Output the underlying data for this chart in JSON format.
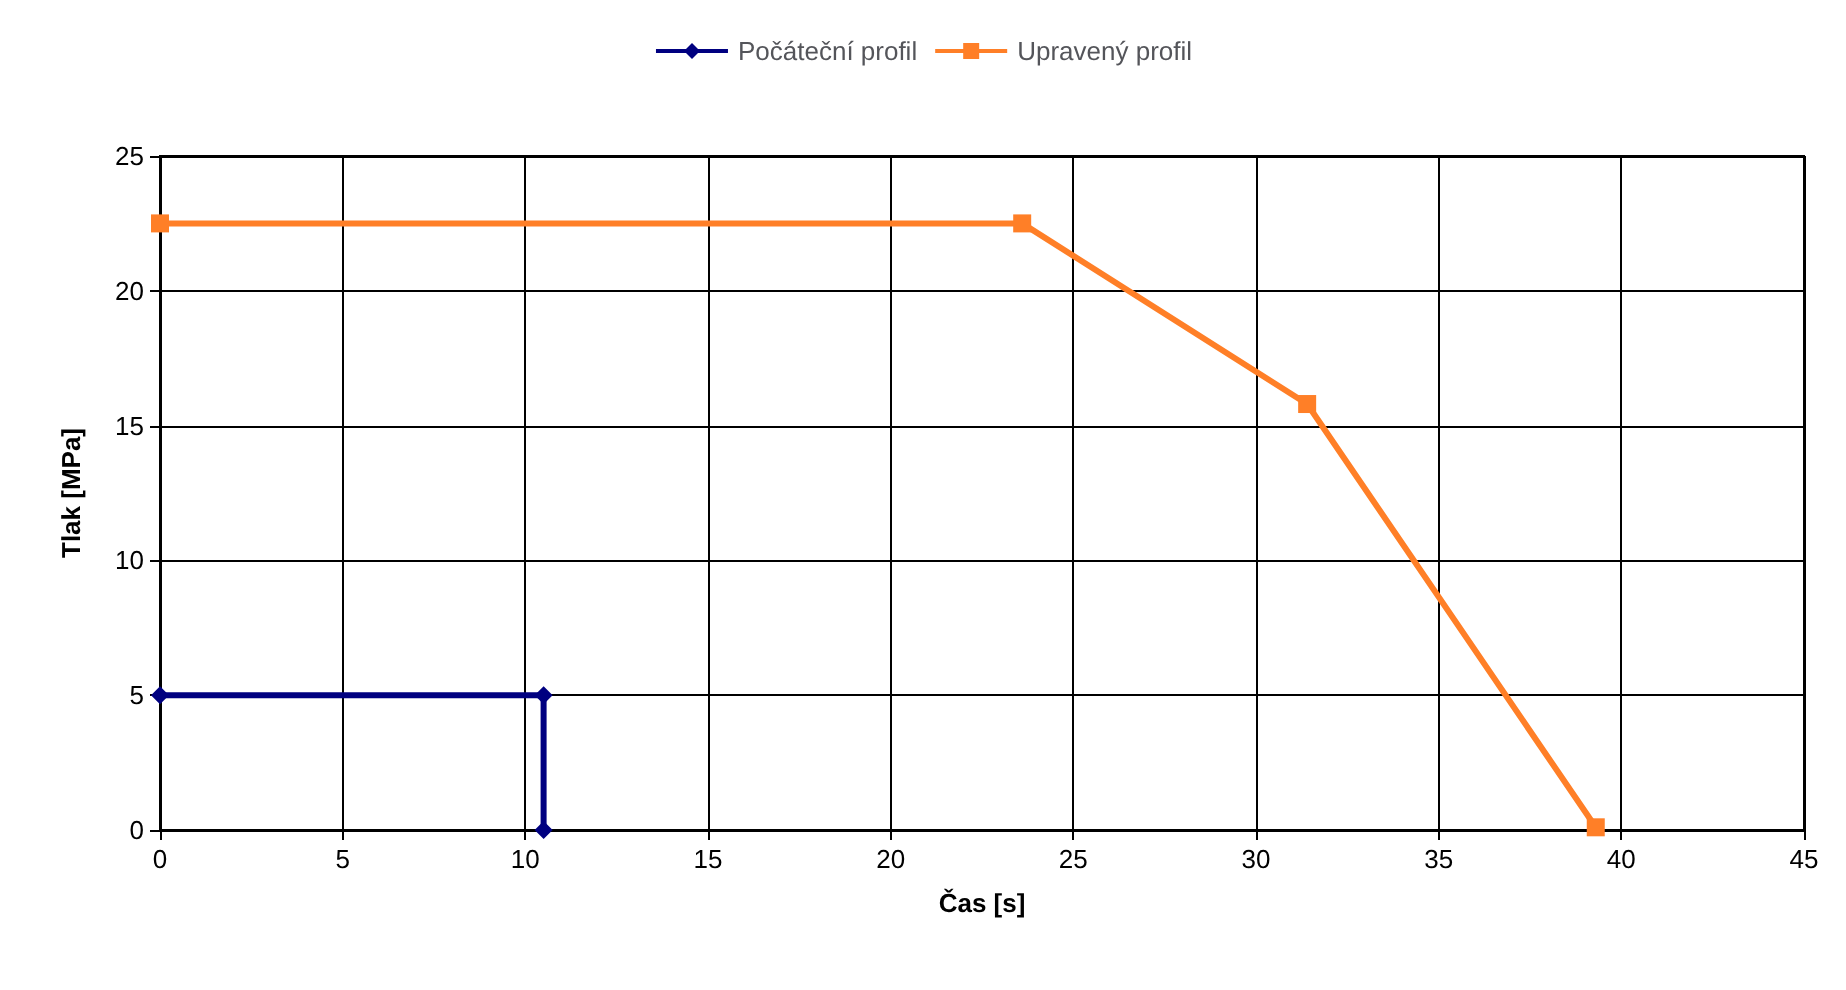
{
  "chart_data": {
    "type": "line",
    "xlabel": "Čas [s]",
    "ylabel": "Tlak [MPa]",
    "xlim": [
      0,
      45
    ],
    "xticks": [
      0,
      5,
      10,
      15,
      20,
      25,
      30,
      35,
      40,
      45
    ],
    "ylim": [
      0,
      25
    ],
    "yticks": [
      0,
      5,
      10,
      15,
      20,
      25
    ],
    "grid": true,
    "legend": "top",
    "series": [
      {
        "name": "Počáteční profil",
        "color": "#000080",
        "marker": "diamond",
        "x": [
          0,
          10.5,
          10.5
        ],
        "values": [
          5,
          5,
          0
        ]
      },
      {
        "name": "Upravený profil",
        "color": "#ff7f27",
        "marker": "square",
        "x": [
          0,
          23.6,
          31.4,
          39.3
        ],
        "values": [
          22.5,
          22.5,
          15.8,
          0.1
        ]
      }
    ]
  }
}
